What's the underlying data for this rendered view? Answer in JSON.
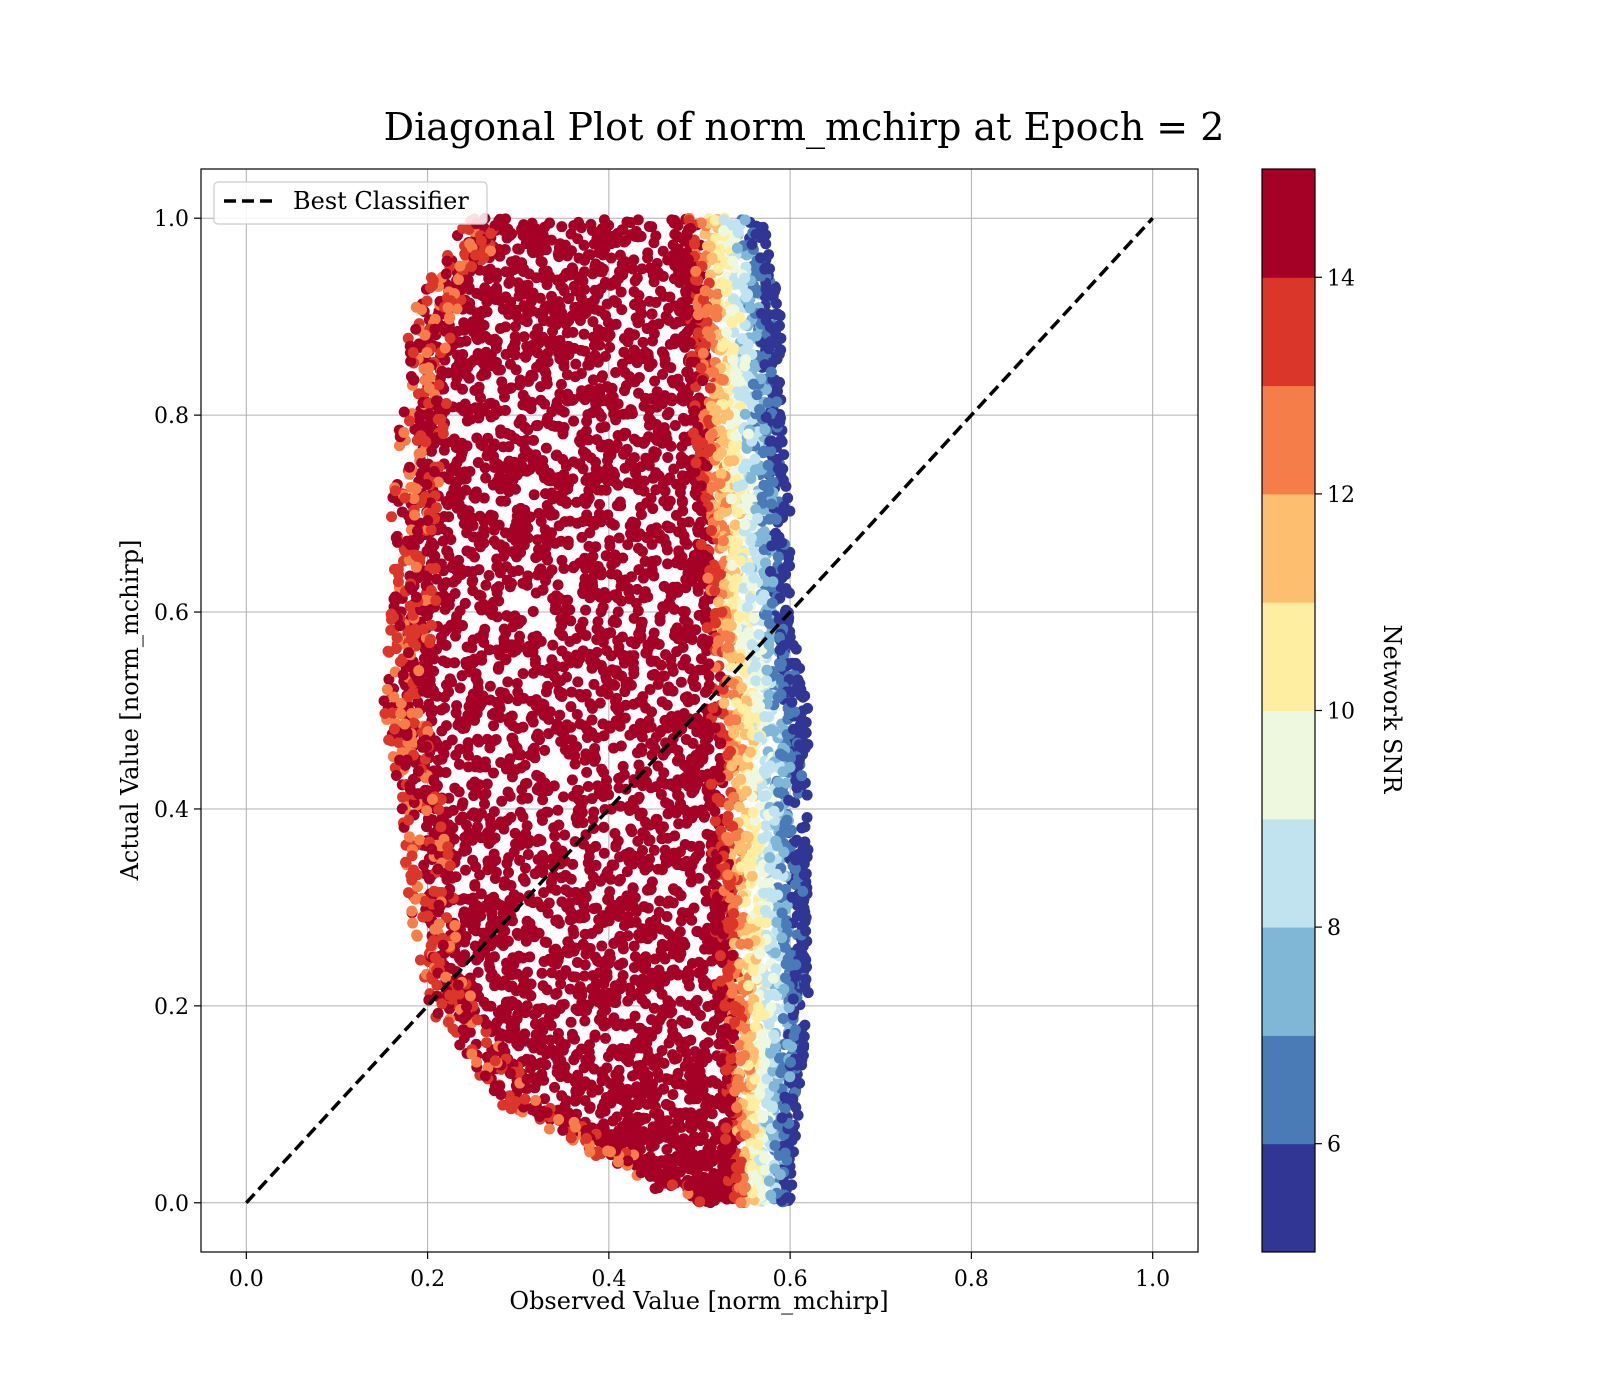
{
  "chart_data": {
    "type": "scatter",
    "title": "Diagonal Plot of norm_mchirp at Epoch = 2",
    "xlabel": "Observed Value [norm_mchirp]",
    "ylabel": "Actual Value [norm_mchirp]",
    "xlim": [
      -0.05,
      1.05
    ],
    "ylim": [
      -0.05,
      1.05
    ],
    "xticks": [
      0.0,
      0.2,
      0.4,
      0.6,
      0.8,
      1.0
    ],
    "yticks": [
      0.0,
      0.2,
      0.4,
      0.6,
      0.8,
      1.0
    ],
    "xtick_labels": [
      "0.0",
      "0.2",
      "0.4",
      "0.6",
      "0.8",
      "1.0"
    ],
    "ytick_labels": [
      "0.0",
      "0.2",
      "0.4",
      "0.6",
      "0.8",
      "1.0"
    ],
    "grid": true,
    "legend": {
      "placement": "upper left",
      "entries": [
        {
          "label": "Best Classifier",
          "style": "dashed",
          "color": "#000000"
        }
      ]
    },
    "reference_line": {
      "name": "Best Classifier",
      "x": [
        0.0,
        1.0
      ],
      "y": [
        0.0,
        1.0
      ]
    },
    "point_cloud": {
      "description_values": {
        "dense_region": {
          "x_range": [
            0.2,
            0.55
          ],
          "y_range": [
            0.0,
            1.0
          ]
        },
        "outer_region": {
          "x_range": [
            0.15,
            0.63
          ],
          "y_range": [
            0.0,
            1.0
          ]
        }
      },
      "envelope": [
        {
          "y": 1.0,
          "x_left": 0.24,
          "x_right": 0.57
        },
        {
          "y": 0.9,
          "x_left": 0.18,
          "x_right": 0.59
        },
        {
          "y": 0.8,
          "x_left": 0.17,
          "x_right": 0.59
        },
        {
          "y": 0.7,
          "x_left": 0.16,
          "x_right": 0.6
        },
        {
          "y": 0.6,
          "x_left": 0.16,
          "x_right": 0.6
        },
        {
          "y": 0.5,
          "x_left": 0.15,
          "x_right": 0.62
        },
        {
          "y": 0.4,
          "x_left": 0.17,
          "x_right": 0.62
        },
        {
          "y": 0.3,
          "x_left": 0.18,
          "x_right": 0.62
        },
        {
          "y": 0.2,
          "x_left": 0.2,
          "x_right": 0.62
        },
        {
          "y": 0.1,
          "x_left": 0.28,
          "x_right": 0.61
        },
        {
          "y": 0.0,
          "x_left": 0.48,
          "x_right": 0.6
        }
      ],
      "high_snr_boundary": [
        {
          "y": 1.0,
          "x": 0.5
        },
        {
          "y": 0.8,
          "x": 0.51
        },
        {
          "y": 0.6,
          "x": 0.52
        },
        {
          "y": 0.4,
          "x": 0.53
        },
        {
          "y": 0.2,
          "x": 0.54
        },
        {
          "y": 0.0,
          "x": 0.55
        }
      ],
      "color_by": "Network SNR"
    },
    "colorbar": {
      "label": "Network SNR",
      "range": [
        5,
        15
      ],
      "ticks": [
        6,
        8,
        10,
        12,
        14
      ],
      "tick_labels": [
        "6",
        "8",
        "10",
        "12",
        "14"
      ],
      "bins": [
        {
          "from": 5,
          "to": 6,
          "color": "#313695"
        },
        {
          "from": 6,
          "to": 7,
          "color": "#4a7bb7"
        },
        {
          "from": 7,
          "to": 8,
          "color": "#80b6d6"
        },
        {
          "from": 8,
          "to": 9,
          "color": "#c0e3ef"
        },
        {
          "from": 9,
          "to": 10,
          "color": "#eef8df"
        },
        {
          "from": 10,
          "to": 11,
          "color": "#feeea2"
        },
        {
          "from": 11,
          "to": 12,
          "color": "#fdbf6f"
        },
        {
          "from": 12,
          "to": 13,
          "color": "#f57d4a"
        },
        {
          "from": 13,
          "to": 14,
          "color": "#da372a"
        },
        {
          "from": 14,
          "to": 15,
          "color": "#a50026"
        }
      ]
    }
  }
}
